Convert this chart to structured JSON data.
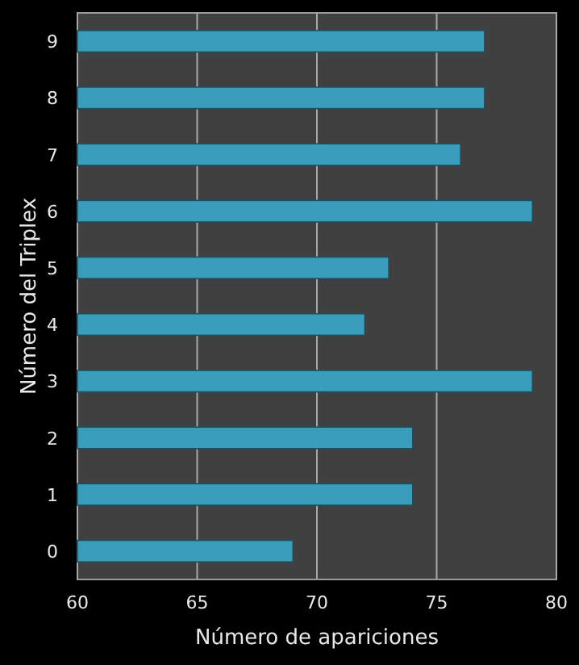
{
  "chart_data": {
    "type": "bar",
    "orientation": "horizontal",
    "xlabel": "Número  de apariciones",
    "ylabel": "Número  del Triplex",
    "categories": [
      "9",
      "8",
      "7",
      "6",
      "5",
      "4",
      "3",
      "2",
      "1",
      "0"
    ],
    "values": [
      77,
      77,
      76,
      79,
      73,
      72,
      79,
      74,
      74,
      69
    ],
    "color": "#3a9dbb",
    "xlim": [
      60,
      80
    ],
    "xticks": [
      60,
      65,
      70,
      75,
      80
    ],
    "grid": "x"
  }
}
